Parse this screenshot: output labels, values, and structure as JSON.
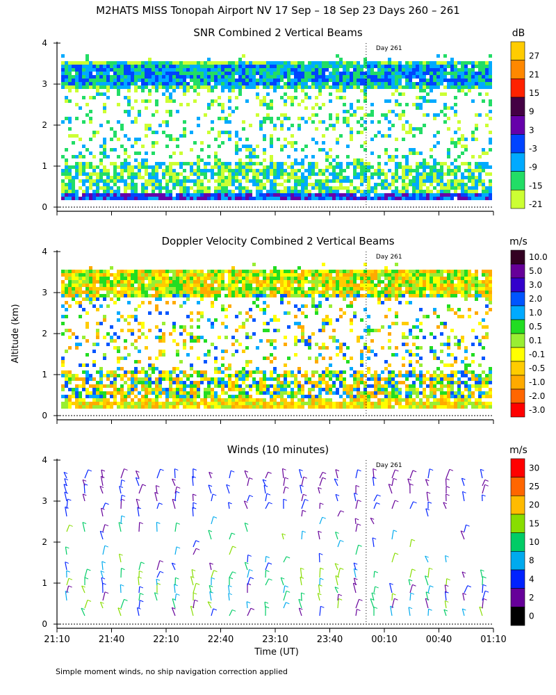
{
  "title": "M2HATS MISS Tonopah Airport NV  17 Sep – 18 Sep 23 Days 260 – 261",
  "ylabel": "Altitude (km)",
  "xlabel": "Time (UT)",
  "footnote": "Simple moment winds, no ship navigation correction applied",
  "day_marker": "Day 261",
  "chart_data": [
    {
      "type": "heatmap",
      "title": "SNR Combined 2 Vertical Beams",
      "units": "dB",
      "ylim": [
        0,
        4
      ],
      "yticks": [
        "0",
        "1",
        "2",
        "3",
        "4"
      ],
      "colorbar_labels": [
        "27",
        "21",
        "15",
        "9",
        "3",
        "-3",
        "-9",
        "-15",
        "-21"
      ],
      "colors": [
        "#ffcc00",
        "#ff8800",
        "#ff2200",
        "#440044",
        "#6600aa",
        "#0044ff",
        "#00aaff",
        "#22dd66",
        "#ccff33"
      ],
      "day_marker_time": "00:00"
    },
    {
      "type": "heatmap",
      "title": "Doppler Velocity Combined 2 Vertical Beams",
      "units": "m/s",
      "ylim": [
        0,
        4
      ],
      "yticks": [
        "0",
        "1",
        "2",
        "3",
        "4"
      ],
      "colorbar_labels": [
        "10.0",
        "5.0",
        "3.0",
        "2.0",
        "1.0",
        "0.5",
        "0.1",
        "-0.1",
        "-0.5",
        "-1.0",
        "-2.0",
        "-3.0"
      ],
      "colors": [
        "#330022",
        "#660099",
        "#3300cc",
        "#0055ff",
        "#00aaff",
        "#22dd22",
        "#99ee33",
        "#ffff00",
        "#ffcc00",
        "#ffaa00",
        "#ff6600",
        "#ff0000"
      ],
      "day_marker_time": "00:00"
    },
    {
      "type": "wind_barbs",
      "title": "Winds (10 minutes)",
      "units": "m/s",
      "ylim": [
        0,
        4
      ],
      "yticks": [
        "0",
        "1",
        "2",
        "3",
        "4"
      ],
      "colorbar_labels": [
        "30",
        "25",
        "20",
        "15",
        "10",
        "8",
        "4",
        "2",
        "0"
      ],
      "colors": [
        "#ff0000",
        "#ff6600",
        "#ffbb00",
        "#88dd00",
        "#00cc66",
        "#00aaee",
        "#0022ff",
        "#660099",
        "#000000"
      ],
      "xticks": [
        "21:10",
        "21:40",
        "22:10",
        "22:40",
        "23:10",
        "23:40",
        "00:10",
        "00:40",
        "01:10"
      ],
      "day_marker_time": "00:00"
    }
  ]
}
